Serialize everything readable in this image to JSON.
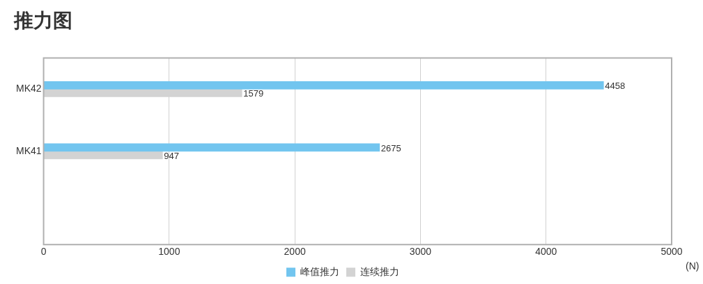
{
  "chart_data": {
    "type": "bar",
    "orientation": "horizontal",
    "title": "推力图",
    "xlabel": "(N)",
    "categories": [
      "MK42",
      "MK41",
      null
    ],
    "series": [
      {
        "name": "峰值推力",
        "color": "#72c5ef",
        "values": [
          4458,
          2675,
          null
        ]
      },
      {
        "name": "连续推力",
        "color": "#d3d3d3",
        "values": [
          1579,
          947,
          null
        ]
      }
    ],
    "xlim": [
      0,
      5000
    ],
    "xticks": [
      0,
      1000,
      2000,
      3000,
      4000,
      5000
    ],
    "grid": "x",
    "legend": "bottom",
    "data_labels": true
  }
}
